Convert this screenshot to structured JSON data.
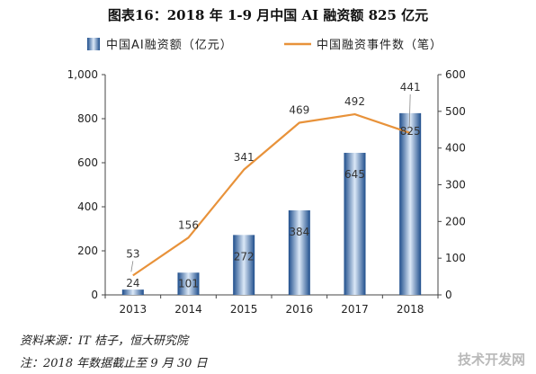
{
  "title": "图表16：2018 年 1-9 月中国 AI 融资额 825 亿元",
  "legend": {
    "bar_label": "中国AI融资额（亿元）",
    "line_label": "中国融资事件数（笔）"
  },
  "colors": {
    "bar_dark": "#1f4e8c",
    "bar_light": "#dbe8f7",
    "line": "#e8923a",
    "axis": "#444444"
  },
  "chart_data": {
    "type": "bar",
    "categories": [
      "2013",
      "2014",
      "2015",
      "2016",
      "2017",
      "2018"
    ],
    "series": [
      {
        "name": "中国AI融资额（亿元）",
        "type": "bar",
        "axis": "left",
        "values": [
          24,
          101,
          272,
          384,
          645,
          825
        ]
      },
      {
        "name": "中国融资事件数（笔）",
        "type": "line",
        "axis": "right",
        "values": [
          53,
          156,
          341,
          469,
          492,
          441
        ]
      }
    ],
    "y_left": {
      "min": 0,
      "max": 1000,
      "ticks": [
        "0",
        "200",
        "400",
        "600",
        "800",
        "1,000"
      ]
    },
    "y_right": {
      "min": 0,
      "max": 600,
      "ticks": [
        "0",
        "100",
        "200",
        "300",
        "400",
        "500",
        "600"
      ]
    },
    "legend_position": "top"
  },
  "source": "资料来源：IT 桔子，恒大研究院",
  "note": "注：2018 年数据截止至 9 月 30 日",
  "watermark": "技术开发网"
}
